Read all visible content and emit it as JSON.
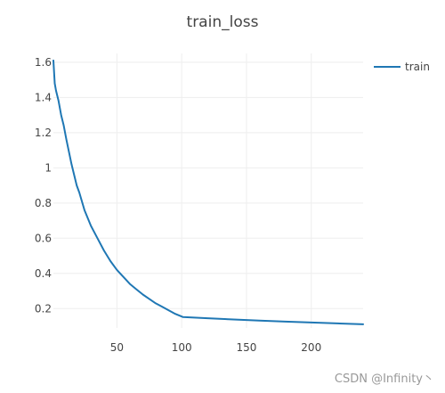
{
  "chart_data": {
    "type": "line",
    "title": "train_loss",
    "xlabel": "",
    "ylabel": "",
    "xlim": [
      1,
      240
    ],
    "ylim": [
      0.09,
      1.65
    ],
    "xticks": [
      50,
      100,
      150,
      200
    ],
    "yticks": [
      0.2,
      0.4,
      0.6,
      0.8,
      1,
      1.2,
      1.4,
      1.6
    ],
    "grid": true,
    "legend_position": "top-right",
    "series": [
      {
        "name": "train",
        "color": "#1f77b4",
        "x": [
          1,
          2,
          3,
          5,
          7,
          9,
          11,
          13,
          15,
          17,
          19,
          21,
          25,
          30,
          35,
          40,
          45,
          50,
          55,
          60,
          65,
          70,
          75,
          80,
          85,
          90,
          95,
          100,
          101,
          120,
          140,
          160,
          180,
          200,
          220,
          240
        ],
        "y": [
          1.61,
          1.48,
          1.44,
          1.38,
          1.3,
          1.24,
          1.16,
          1.09,
          1.02,
          0.96,
          0.9,
          0.86,
          0.76,
          0.67,
          0.6,
          0.53,
          0.47,
          0.42,
          0.38,
          0.34,
          0.31,
          0.28,
          0.255,
          0.23,
          0.21,
          0.19,
          0.17,
          0.155,
          0.152,
          0.145,
          0.138,
          0.132,
          0.126,
          0.121,
          0.116,
          0.111
        ]
      }
    ]
  },
  "watermark": "CSDN @Infinity丶"
}
